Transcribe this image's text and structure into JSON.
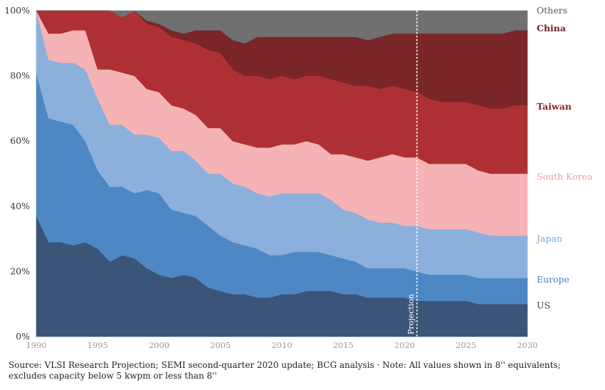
{
  "chart_data": {
    "type": "area",
    "stacked": true,
    "normalized": true,
    "x": [
      1990,
      1991,
      1992,
      1993,
      1994,
      1995,
      1996,
      1997,
      1998,
      1999,
      2000,
      2001,
      2002,
      2003,
      2004,
      2005,
      2006,
      2007,
      2008,
      2009,
      2010,
      2011,
      2012,
      2013,
      2014,
      2015,
      2016,
      2017,
      2018,
      2019,
      2020,
      2021,
      2022,
      2023,
      2024,
      2025,
      2026,
      2027,
      2028,
      2029,
      2030
    ],
    "xticks": [
      "1990",
      "1995",
      "2000",
      "2005",
      "2010",
      "2015",
      "2020",
      "2025",
      "2030"
    ],
    "xtick_values": [
      1990,
      1995,
      2000,
      2005,
      2010,
      2015,
      2020,
      2025,
      2030
    ],
    "ylim": [
      0,
      100
    ],
    "yticks": [
      "0%",
      "20%",
      "40%",
      "60%",
      "80%",
      "100%"
    ],
    "ytick_values": [
      0,
      20,
      40,
      60,
      80,
      100
    ],
    "grid": false,
    "legend": "right-inline",
    "projection": {
      "x": 2021,
      "label": "Projection"
    },
    "series": [
      {
        "name": "US",
        "color": "#3a5577",
        "values": [
          37,
          29,
          29,
          28,
          29,
          27,
          23,
          25,
          24,
          21,
          19,
          18,
          19,
          18,
          15,
          14,
          13,
          13,
          12,
          12,
          13,
          13,
          14,
          14,
          14,
          13,
          13,
          12,
          12,
          12,
          12,
          11,
          11,
          11,
          11,
          11,
          10,
          10,
          10,
          10,
          10
        ]
      },
      {
        "name": "Europe",
        "color": "#4d88c4",
        "values": [
          44,
          38,
          37,
          37,
          31,
          24,
          23,
          21,
          20,
          24,
          25,
          21,
          19,
          19,
          19,
          17,
          16,
          15,
          15,
          13,
          12,
          13,
          12,
          12,
          11,
          11,
          10,
          9,
          9,
          9,
          9,
          9,
          8,
          8,
          8,
          8,
          8,
          8,
          8,
          8,
          8
        ]
      },
      {
        "name": "Japan",
        "color": "#8bb0db",
        "values": [
          19,
          18,
          18,
          19,
          22,
          22,
          19,
          19,
          18,
          17,
          17,
          18,
          19,
          17,
          16,
          19,
          18,
          18,
          17,
          18,
          19,
          18,
          18,
          18,
          17,
          15,
          15,
          15,
          14,
          14,
          13,
          14,
          14,
          14,
          14,
          14,
          14,
          13,
          13,
          13,
          13
        ]
      },
      {
        "name": "South Korea",
        "color": "#f5b3b6",
        "values": [
          0,
          8,
          9,
          10,
          12,
          9,
          17,
          16,
          18,
          14,
          14,
          14,
          13,
          14,
          14,
          14,
          13,
          13,
          14,
          15,
          15,
          15,
          16,
          15,
          14,
          17,
          17,
          18,
          20,
          21,
          21,
          21,
          20,
          20,
          20,
          20,
          19,
          19,
          19,
          19,
          19
        ]
      },
      {
        "name": "Taiwan",
        "color": "#af3034",
        "values": [
          0,
          7,
          7,
          6,
          6,
          18,
          18,
          17,
          20,
          20,
          20,
          21,
          21,
          22,
          24,
          23,
          22,
          21,
          22,
          21,
          21,
          20,
          20,
          21,
          23,
          22,
          22,
          23,
          21,
          21,
          21,
          20,
          20,
          19,
          19,
          19,
          20,
          20,
          20,
          21,
          21
        ]
      },
      {
        "name": "China",
        "color": "#7a2628",
        "values": [
          0,
          0,
          0,
          0,
          0,
          0,
          0,
          0,
          0,
          1,
          1,
          2,
          2,
          4,
          6,
          7,
          9,
          10,
          12,
          13,
          12,
          13,
          12,
          12,
          13,
          14,
          15,
          14,
          16,
          16,
          17,
          18,
          20,
          21,
          21,
          21,
          22,
          23,
          23,
          23,
          23
        ]
      },
      {
        "name": "Others",
        "color": "#707070",
        "values": [
          0,
          0,
          0,
          0,
          0,
          0,
          0,
          2,
          0,
          3,
          4,
          6,
          7,
          6,
          6,
          6,
          9,
          10,
          8,
          8,
          8,
          8,
          8,
          8,
          8,
          8,
          8,
          9,
          8,
          7,
          7,
          7,
          7,
          7,
          7,
          7,
          7,
          7,
          7,
          6,
          6
        ]
      }
    ],
    "labels": [
      {
        "series": "Others",
        "text": "Others",
        "value": 100,
        "color": "#555555"
      },
      {
        "series": "China",
        "text": "China",
        "value": 94.5,
        "color": "#6f2224",
        "bold": true
      },
      {
        "series": "Taiwan",
        "text": "Taiwan",
        "value": 70.5,
        "color": "#8c2226",
        "bold": true
      },
      {
        "series": "South Korea",
        "text": "South Korea",
        "value": 49,
        "color": "#ef9aa0"
      },
      {
        "series": "Japan",
        "text": "Japan",
        "value": 30,
        "color": "#7ea6d6"
      },
      {
        "series": "Europe",
        "text": "Europe",
        "value": 17.5,
        "color": "#3f7ec0"
      },
      {
        "series": "US",
        "text": "US",
        "value": 9.5,
        "color": "#2b4566"
      }
    ]
  },
  "source_note": "Source: VLSI Research Projection; SEMI second-quarter 2020 update; BCG analysis · Note: All values shown in 8'' equivalents; excludes capacity below 5 kwpm or less than 8''"
}
